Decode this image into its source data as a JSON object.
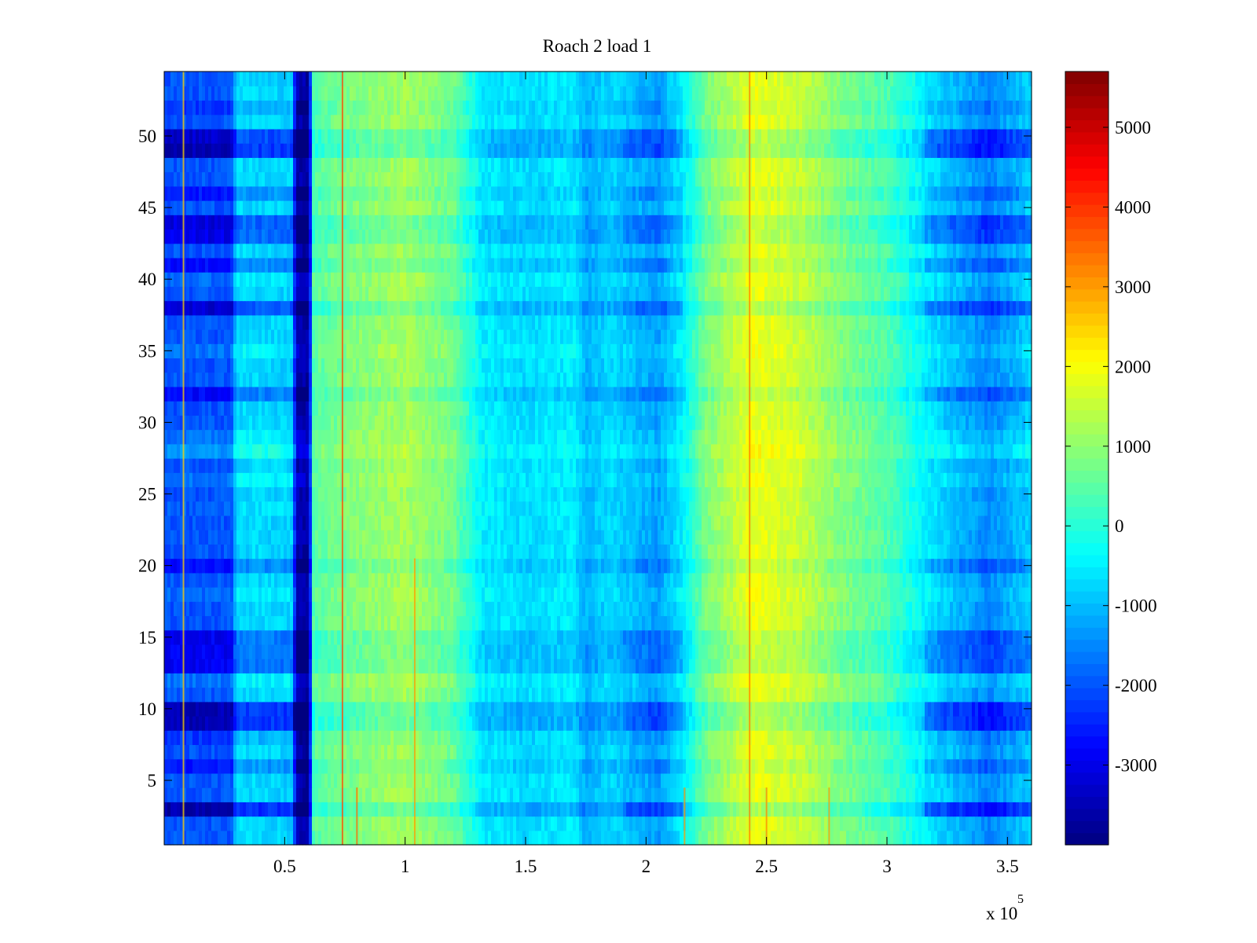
{
  "chart_data": {
    "type": "heatmap",
    "title": "Roach 2 load 1",
    "xlabel": "",
    "ylabel": "",
    "x_exponent_label": "x 10",
    "x_exponent_power": "5",
    "xlim": [
      0,
      360000
    ],
    "ylim": [
      0.5,
      54.5
    ],
    "x_ticks": [
      {
        "value": 50000,
        "label": "0.5"
      },
      {
        "value": 100000,
        "label": "1"
      },
      {
        "value": 150000,
        "label": "1.5"
      },
      {
        "value": 200000,
        "label": "2"
      },
      {
        "value": 250000,
        "label": "2.5"
      },
      {
        "value": 300000,
        "label": "3"
      },
      {
        "value": 350000,
        "label": "3.5"
      }
    ],
    "y_ticks": [
      {
        "value": 5,
        "label": "5"
      },
      {
        "value": 10,
        "label": "10"
      },
      {
        "value": 15,
        "label": "15"
      },
      {
        "value": 20,
        "label": "20"
      },
      {
        "value": 25,
        "label": "25"
      },
      {
        "value": 30,
        "label": "30"
      },
      {
        "value": 35,
        "label": "35"
      },
      {
        "value": 40,
        "label": "40"
      },
      {
        "value": 45,
        "label": "45"
      },
      {
        "value": 50,
        "label": "50"
      }
    ],
    "rows": 54,
    "colormap": "jet",
    "colorbar": {
      "range": [
        -4000,
        5700
      ],
      "ticks": [
        {
          "value": -3000,
          "label": "-3000"
        },
        {
          "value": -2000,
          "label": "-2000"
        },
        {
          "value": -1000,
          "label": "-1000"
        },
        {
          "value": 0,
          "label": "0"
        },
        {
          "value": 1000,
          "label": "1000"
        },
        {
          "value": 2000,
          "label": "2000"
        },
        {
          "value": 3000,
          "label": "3000"
        },
        {
          "value": 4000,
          "label": "4000"
        },
        {
          "value": 5000,
          "label": "5000"
        }
      ]
    },
    "column_profile": [
      {
        "x": 0,
        "value": -2000
      },
      {
        "x": 28000,
        "value": -2000
      },
      {
        "x": 30000,
        "value": -700
      },
      {
        "x": 53000,
        "value": -800
      },
      {
        "x": 55000,
        "value": -3500
      },
      {
        "x": 60000,
        "value": -3700
      },
      {
        "x": 62000,
        "value": 500
      },
      {
        "x": 80000,
        "value": 900
      },
      {
        "x": 100000,
        "value": 1200
      },
      {
        "x": 120000,
        "value": 700
      },
      {
        "x": 132000,
        "value": -500
      },
      {
        "x": 150000,
        "value": -700
      },
      {
        "x": 170000,
        "value": -500
      },
      {
        "x": 175000,
        "value": -1100
      },
      {
        "x": 185000,
        "value": -700
      },
      {
        "x": 205000,
        "value": -1300
      },
      {
        "x": 215000,
        "value": -500
      },
      {
        "x": 225000,
        "value": 800
      },
      {
        "x": 245000,
        "value": 1900
      },
      {
        "x": 265000,
        "value": 1500
      },
      {
        "x": 280000,
        "value": 900
      },
      {
        "x": 300000,
        "value": 400
      },
      {
        "x": 320000,
        "value": -700
      },
      {
        "x": 342000,
        "value": -1500
      },
      {
        "x": 360000,
        "value": -800
      }
    ],
    "row_offsets": [
      {
        "row": 1,
        "offset": 0
      },
      {
        "row": 3,
        "offset": -1600
      },
      {
        "row": 6,
        "offset": -600
      },
      {
        "row": 8,
        "offset": -300
      },
      {
        "row": 9,
        "offset": -1500
      },
      {
        "row": 10,
        "offset": -1500
      },
      {
        "row": 12,
        "offset": 300
      },
      {
        "row": 13,
        "offset": -900
      },
      {
        "row": 14,
        "offset": -900
      },
      {
        "row": 15,
        "offset": -900
      },
      {
        "row": 18,
        "offset": 200
      },
      {
        "row": 20,
        "offset": -700
      },
      {
        "row": 24,
        "offset": 100
      },
      {
        "row": 26,
        "offset": 300
      },
      {
        "row": 28,
        "offset": 600
      },
      {
        "row": 29,
        "offset": 300
      },
      {
        "row": 32,
        "offset": -800
      },
      {
        "row": 35,
        "offset": 300
      },
      {
        "row": 38,
        "offset": -1200
      },
      {
        "row": 40,
        "offset": 200
      },
      {
        "row": 41,
        "offset": -700
      },
      {
        "row": 43,
        "offset": -1000
      },
      {
        "row": 44,
        "offset": -1100
      },
      {
        "row": 46,
        "offset": -600
      },
      {
        "row": 49,
        "offset": -1500
      },
      {
        "row": 50,
        "offset": -1300
      },
      {
        "row": 52,
        "offset": -300
      }
    ],
    "spikes": [
      {
        "x": 74000,
        "rows": [
          1,
          54
        ],
        "value": 3800
      },
      {
        "x": 8000,
        "rows": [
          1,
          54
        ],
        "value": 2500
      },
      {
        "x": 243000,
        "rows": [
          1,
          54
        ],
        "value": 3300
      },
      {
        "x": 104000,
        "rows": [
          1,
          20
        ],
        "value": 3000
      },
      {
        "x": 80000,
        "rows": [
          1,
          4
        ],
        "value": 3500
      },
      {
        "x": 250000,
        "rows": [
          1,
          4
        ],
        "value": 3200
      },
      {
        "x": 276000,
        "rows": [
          1,
          4
        ],
        "value": 3000
      },
      {
        "x": 216000,
        "rows": [
          1,
          4
        ],
        "value": 3000
      }
    ]
  }
}
